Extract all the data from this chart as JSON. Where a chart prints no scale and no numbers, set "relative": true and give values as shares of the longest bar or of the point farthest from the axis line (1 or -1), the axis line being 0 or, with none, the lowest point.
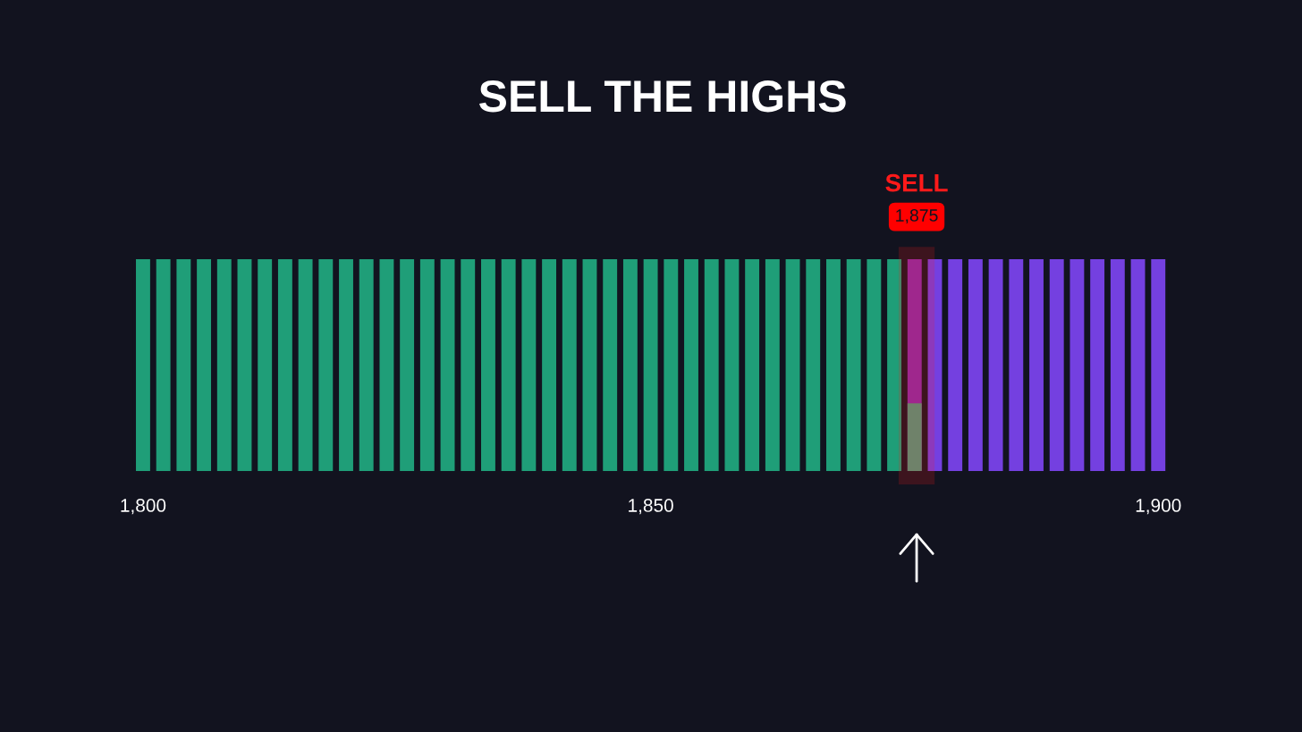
{
  "chart_data": {
    "type": "bar",
    "title": "SELL THE HIGHS",
    "relative": true,
    "x": [
      1800,
      1802,
      1804,
      1806,
      1808,
      1810,
      1812,
      1814,
      1816,
      1818,
      1820,
      1822,
      1824,
      1826,
      1828,
      1830,
      1832,
      1834,
      1836,
      1838,
      1840,
      1842,
      1844,
      1846,
      1848,
      1850,
      1852,
      1854,
      1856,
      1858,
      1860,
      1862,
      1864,
      1866,
      1868,
      1870,
      1872,
      1874,
      1876,
      1878,
      1880,
      1882,
      1884,
      1886,
      1888,
      1890,
      1892,
      1894,
      1896,
      1898,
      1900
    ],
    "xlim": [
      1799,
      1901
    ],
    "xticks": [
      {
        "value": 1800,
        "label": "1,800"
      },
      {
        "value": 1850,
        "label": "1,850"
      },
      {
        "value": 1900,
        "label": "1,900"
      }
    ],
    "series": [
      {
        "values": [
          1,
          1,
          1,
          1,
          1,
          1,
          1,
          1,
          1,
          1,
          1,
          1,
          1,
          1,
          1,
          1,
          1,
          1,
          1,
          1,
          1,
          1,
          1,
          1,
          1,
          1,
          1,
          1,
          1,
          1,
          1,
          1,
          1,
          1,
          1,
          1,
          1,
          1,
          1,
          1,
          1,
          1,
          1,
          1,
          1,
          1,
          1,
          1,
          1,
          1,
          1
        ],
        "colors": [
          "#1f9e78",
          "#1f9e78",
          "#1f9e78",
          "#1f9e78",
          "#1f9e78",
          "#1f9e78",
          "#1f9e78",
          "#1f9e78",
          "#1f9e78",
          "#1f9e78",
          "#1f9e78",
          "#1f9e78",
          "#1f9e78",
          "#1f9e78",
          "#1f9e78",
          "#1f9e78",
          "#1f9e78",
          "#1f9e78",
          "#1f9e78",
          "#1f9e78",
          "#1f9e78",
          "#1f9e78",
          "#1f9e78",
          "#1f9e78",
          "#1f9e78",
          "#1f9e78",
          "#1f9e78",
          "#1f9e78",
          "#1f9e78",
          "#1f9e78",
          "#1f9e78",
          "#1f9e78",
          "#1f9e78",
          "#1f9e78",
          "#1f9e78",
          "#1f9e78",
          "#1f9e78",
          "#1f9e78",
          "#8a2aa8",
          "#7440e0",
          "#7440e0",
          "#7440e0",
          "#7440e0",
          "#7440e0",
          "#7440e0",
          "#7440e0",
          "#7440e0",
          "#7440e0",
          "#7440e0",
          "#7440e0",
          "#7440e0"
        ]
      },
      {
        "x": [
          1876
        ],
        "values": [
          0.32
        ],
        "color": "#4f9a7c"
      }
    ],
    "bands": [
      {
        "axis": "x",
        "from": 1874.5,
        "to": 1877.9,
        "label": "SELL",
        "color": "#ff1a1a"
      }
    ],
    "annotations": [
      "1,875"
    ],
    "legend": false
  }
}
